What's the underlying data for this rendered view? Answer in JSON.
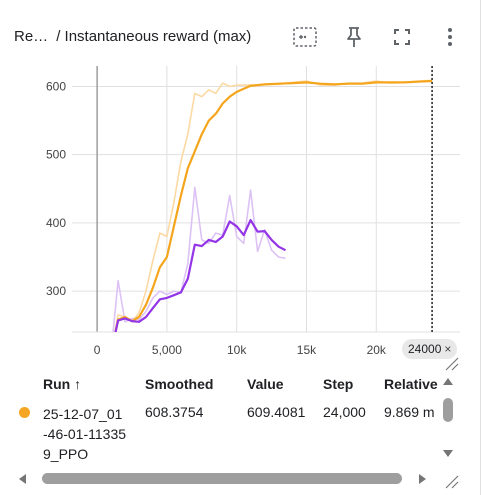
{
  "header": {
    "run_prefix": "Re…",
    "title": "/ Instantaneous reward (max)"
  },
  "icons": {
    "fit_domain": "fit-to-data-icon",
    "pin": "pin-icon",
    "fullscreen": "fullscreen-icon",
    "more": "more-vert-icon"
  },
  "colors": {
    "main": "#f5a51c",
    "main_raw": "#fbd9a3",
    "purple": "#9334e6",
    "purple_raw": "#dcc2f5",
    "grid": "#e0e0e0"
  },
  "hover_step": {
    "label": "24000",
    "close": "×"
  },
  "chart_data": {
    "type": "line",
    "title": "Instantaneous reward (max)",
    "xlabel": "",
    "ylabel": "",
    "xlim": [
      -1800,
      26000
    ],
    "ylim": [
      240,
      630
    ],
    "x_ticks": [
      0,
      5000,
      10000,
      15000,
      20000,
      24000
    ],
    "x_tick_labels": [
      "0",
      "5,000",
      "10k",
      "15k",
      "20k"
    ],
    "y_ticks": [
      300,
      400,
      500,
      600
    ],
    "y_tick_labels": [
      "300",
      "400",
      "500",
      "600"
    ],
    "grid": true,
    "hover_x": 24000,
    "series": [
      {
        "color": "#f5a51c",
        "smoothed": true,
        "x": [
          1000,
          1500,
          2000,
          2500,
          3000,
          3500,
          4000,
          4500,
          5000,
          5500,
          6000,
          6500,
          7000,
          7500,
          8000,
          8500,
          9000,
          9500,
          10000,
          11000,
          12000,
          13000,
          14000,
          15000,
          16000,
          17000,
          18000,
          19000,
          20000,
          21000,
          22000,
          23000,
          24000
        ],
        "y": [
          210,
          258,
          262,
          256,
          262,
          280,
          305,
          335,
          350,
          395,
          440,
          480,
          505,
          530,
          550,
          560,
          575,
          585,
          592,
          601,
          603,
          604,
          605,
          606,
          604,
          603,
          604,
          604,
          606,
          606,
          606,
          607,
          608
        ]
      },
      {
        "color": "#fbd9a3",
        "smoothed": false,
        "x": [
          1000,
          1500,
          2000,
          2500,
          3000,
          3500,
          4000,
          4500,
          5000,
          5500,
          6000,
          6500,
          7000,
          7500,
          8000,
          8500,
          9000,
          9500,
          10000,
          11000,
          12000,
          13000,
          14000,
          15000,
          16000,
          17000,
          18000,
          19000,
          20000,
          21000,
          22000,
          23000,
          24000
        ],
        "y": [
          210,
          265,
          262,
          255,
          268,
          300,
          345,
          385,
          380,
          430,
          490,
          530,
          590,
          585,
          595,
          590,
          605,
          600,
          602,
          602,
          603,
          603,
          606,
          608,
          602,
          602,
          605,
          605,
          608,
          605,
          606,
          608,
          609
        ]
      },
      {
        "color": "#9334e6",
        "smoothed": true,
        "x": [
          1000,
          1500,
          2000,
          2500,
          3000,
          3500,
          4000,
          4500,
          5000,
          5500,
          6000,
          6500,
          7000,
          7500,
          8000,
          8500,
          9000,
          9500,
          10000,
          10500,
          11000,
          11500,
          12000,
          12500,
          13000,
          13500
        ],
        "y": [
          210,
          257,
          260,
          256,
          255,
          262,
          275,
          288,
          290,
          294,
          298,
          318,
          368,
          366,
          375,
          372,
          380,
          402,
          395,
          382,
          404,
          387,
          388,
          375,
          365,
          360
        ]
      },
      {
        "color": "#dcc2f5",
        "smoothed": false,
        "x": [
          1000,
          1500,
          2000,
          2500,
          3000,
          3500,
          4000,
          4500,
          5000,
          5500,
          6000,
          6500,
          7000,
          7500,
          8000,
          8500,
          9000,
          9500,
          10000,
          10500,
          11000,
          11500,
          12000,
          12500,
          13000,
          13500
        ],
        "y": [
          210,
          315,
          255,
          260,
          258,
          270,
          290,
          300,
          295,
          300,
          298,
          340,
          452,
          375,
          370,
          385,
          382,
          440,
          380,
          370,
          448,
          358,
          390,
          360,
          350,
          348
        ]
      }
    ]
  },
  "table": {
    "columns": [
      "Run",
      "Smoothed",
      "Value",
      "Step",
      "Relative"
    ],
    "sort_arrow": "↑",
    "rows": [
      {
        "run": "25-12-07_01-46-01-113359_PPO",
        "smoothed": "608.3754",
        "value": "609.4081",
        "step": "24,000",
        "relative": "9.869 m",
        "dot_color": "#f5a623"
      }
    ]
  }
}
